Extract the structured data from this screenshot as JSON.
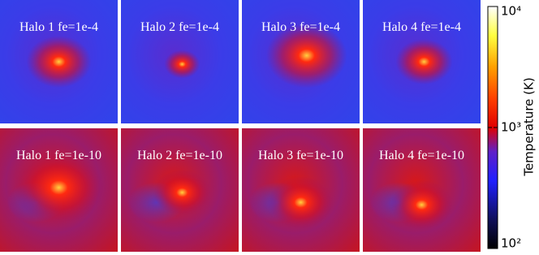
{
  "panels": [
    {
      "label": "Halo 1 fe=1e-4"
    },
    {
      "label": "Halo 2 fe=1e-4"
    },
    {
      "label": "Halo 3 fe=1e-4"
    },
    {
      "label": "Halo 4 fe=1e-4"
    },
    {
      "label": "Halo 1 fe=1e-10"
    },
    {
      "label": "Halo 2 fe=1e-10"
    },
    {
      "label": "Halo 3 fe=1e-10"
    },
    {
      "label": "Halo 4 fe=1e-10"
    }
  ],
  "colorbar": {
    "label": "Temperature  (K)",
    "scale": "log",
    "lim": [
      100,
      10000
    ],
    "ticks": [
      {
        "value": 100,
        "label": "10²"
      },
      {
        "value": 1000,
        "label": "10³"
      },
      {
        "value": 10000,
        "label": "10⁴"
      }
    ]
  }
}
